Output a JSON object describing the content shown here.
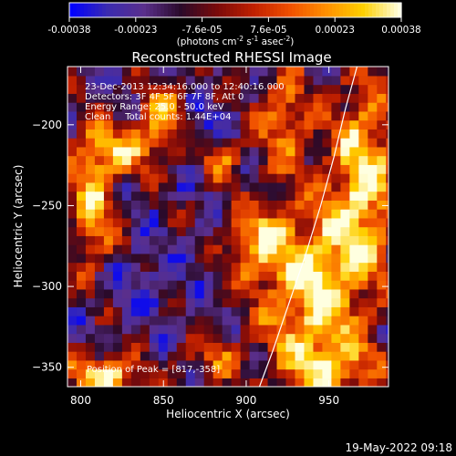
{
  "colorbar": {
    "ticks": [
      "-0.00038",
      "-0.00023",
      "-7.6e-05",
      "7.6e-05",
      "0.00023",
      "0.00038"
    ],
    "units_main": "(photons cm",
    "units_sup1": "-2",
    "units_mid": " s",
    "units_sup2": "-1",
    "units_end": " asec",
    "units_sup3": "-2",
    "units_close": ")",
    "range": [
      -0.00038,
      0.00038
    ],
    "colortable": [
      "#0000ff",
      "#3b2bb0",
      "#5a2f8c",
      "#2a0a2a",
      "#7a0a0a",
      "#c02000",
      "#f05000",
      "#ff9000",
      "#ffd000",
      "#ffffe0"
    ]
  },
  "chart_data": {
    "type": "heatmap",
    "title": "Reconstructed RHESSI Image",
    "xlabel": "Heliocentric X (arcsec)",
    "ylabel": "Heliocentric Y (arcsec)",
    "xlim": [
      792,
      986
    ],
    "ylim": [
      -362,
      -164
    ],
    "xticks": [
      800,
      850,
      900,
      950
    ],
    "yticks": [
      -200,
      -250,
      -300,
      -350
    ],
    "annotations": [
      "23-Dec-2013 12:34:16.000 to 12:40:16.000",
      "Detectors: 3F 4F 5F 6F 7F 8F, Att 0",
      "Energy Range: 25.0 - 50.0 keV",
      "Clean     Total counts: 1.44E+04"
    ],
    "peak_label": "Position of Peak = [817,-358]",
    "peak": [
      817,
      -358
    ],
    "limb": {
      "x": [
        908,
        916,
        926,
        936,
        945,
        953,
        960,
        967
      ],
      "y": [
        -362,
        -340,
        -310,
        -280,
        -250,
        -220,
        -190,
        -164
      ]
    },
    "sources": [
      {
        "x": 940,
        "y": -300,
        "amp": 0.95,
        "sx": 22,
        "sy": 40
      },
      {
        "x": 972,
        "y": -230,
        "amp": 0.85,
        "sx": 14,
        "sy": 45
      },
      {
        "x": 815,
        "y": -355,
        "amp": 1.0,
        "sx": 14,
        "sy": 9
      },
      {
        "x": 808,
        "y": -250,
        "amp": 0.8,
        "sx": 9,
        "sy": 28
      },
      {
        "x": 825,
        "y": -215,
        "amp": 0.6,
        "sx": 22,
        "sy": 12
      },
      {
        "x": 850,
        "y": -195,
        "amp": 0.75,
        "sx": 10,
        "sy": 14
      },
      {
        "x": 885,
        "y": -220,
        "amp": 0.55,
        "sx": 9,
        "sy": 9
      },
      {
        "x": 905,
        "y": -270,
        "amp": 0.65,
        "sx": 12,
        "sy": 18
      },
      {
        "x": 922,
        "y": -195,
        "amp": 0.6,
        "sx": 12,
        "sy": 22
      },
      {
        "x": 880,
        "y": -345,
        "amp": 0.45,
        "sx": 14,
        "sy": 10
      },
      {
        "x": 955,
        "y": -350,
        "amp": 0.55,
        "sx": 20,
        "sy": 12
      }
    ],
    "dips": [
      {
        "x": 870,
        "y": -205,
        "amp": 0.6,
        "sx": 14,
        "sy": 10
      },
      {
        "x": 838,
        "y": -300,
        "amp": 0.45,
        "sx": 16,
        "sy": 14
      },
      {
        "x": 905,
        "y": -245,
        "amp": 0.35,
        "sx": 10,
        "sy": 10
      }
    ]
  },
  "timestamp": "19-May-2022 09:18"
}
